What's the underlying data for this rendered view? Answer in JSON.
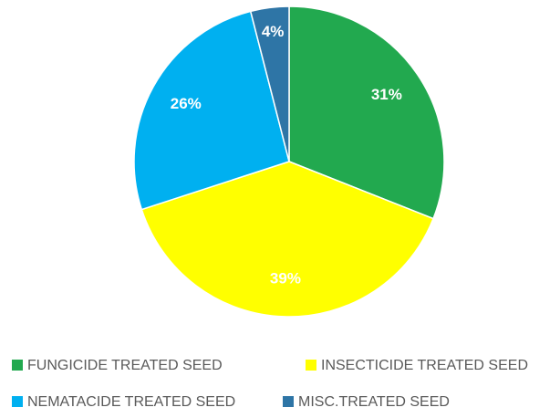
{
  "chart_data": {
    "type": "pie",
    "categories": [
      "FUNGICIDE TREATED SEED",
      "INSECTICIDE TREATED SEED",
      "NEMATACIDE TREATED SEED",
      "MISC.TREATED SEED"
    ],
    "values": [
      31,
      39,
      26,
      4
    ],
    "value_labels": [
      "31%",
      "39%",
      "26%",
      "4%"
    ],
    "colors": [
      "#22a94f",
      "#ffff00",
      "#00b0f0",
      "#2e75a6"
    ],
    "legend": "bottom"
  }
}
